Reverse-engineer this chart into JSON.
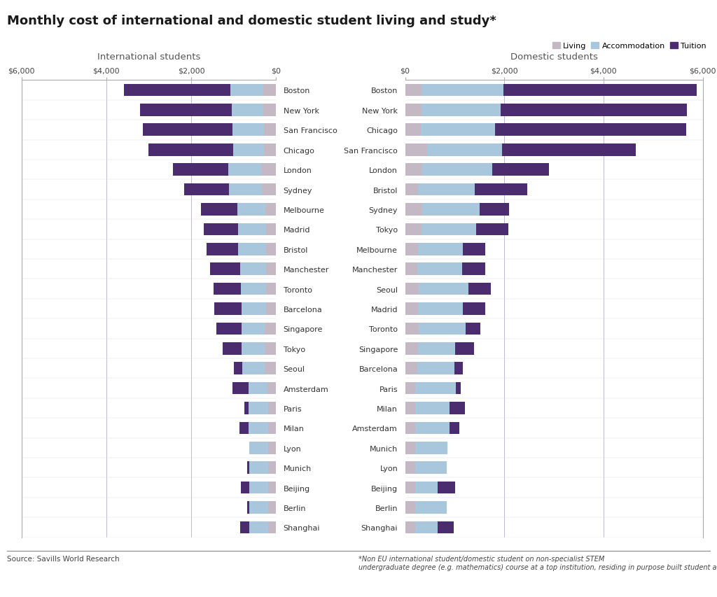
{
  "title": "Monthly cost of international and domestic student living and study*",
  "legend_labels": [
    "Living",
    "Accommodation",
    "Tuition"
  ],
  "intl_subtitle": "International students",
  "dom_subtitle": "Domestic students",
  "source_text": "Source: Savills World Research",
  "footnote": "*Non EU international student/domestic student on non-specialist STEM\nundergraduate degree (e.g. mathematics) course at a top institution, residing in purpose built student accommodation.",
  "cities_intl": [
    "Boston",
    "New York",
    "San Francisco",
    "Chicago",
    "London",
    "Sydney",
    "Melbourne",
    "Madrid",
    "Bristol",
    "Manchester",
    "Toronto",
    "Barcelona",
    "Singapore",
    "Tokyo",
    "Seoul",
    "Amsterdam",
    "Paris",
    "Milan",
    "Lyon",
    "Munich",
    "Beijing",
    "Berlin",
    "Shanghai"
  ],
  "cities_dom": [
    "Boston",
    "New York",
    "Chicago",
    "San Francisco",
    "London",
    "Bristol",
    "Sydney",
    "Tokyo",
    "Melbourne",
    "Manchester",
    "Seoul",
    "Madrid",
    "Toronto",
    "Singapore",
    "Barcelona",
    "Paris",
    "Milan",
    "Amsterdam",
    "Munich",
    "Lyon",
    "Beijing",
    "Berlin",
    "Shanghai"
  ],
  "intl_living": [
    300,
    300,
    280,
    290,
    350,
    340,
    250,
    240,
    240,
    230,
    240,
    230,
    260,
    260,
    260,
    200,
    190,
    190,
    190,
    190,
    190,
    190,
    190
  ],
  "intl_accommodation": [
    780,
    750,
    740,
    720,
    780,
    770,
    670,
    650,
    650,
    620,
    590,
    590,
    550,
    550,
    540,
    450,
    450,
    450,
    440,
    440,
    440,
    440,
    440
  ],
  "intl_tuition": [
    2500,
    2150,
    2120,
    2000,
    1300,
    1050,
    850,
    820,
    750,
    700,
    640,
    640,
    600,
    450,
    200,
    380,
    100,
    220,
    0,
    55,
    200,
    55,
    210
  ],
  "dom_living": [
    330,
    330,
    320,
    450,
    350,
    260,
    350,
    330,
    260,
    250,
    280,
    260,
    270,
    260,
    250,
    200,
    200,
    200,
    200,
    200,
    200,
    200,
    200
  ],
  "dom_accommodation": [
    1650,
    1600,
    1500,
    1500,
    1400,
    1150,
    1150,
    1100,
    900,
    900,
    1000,
    900,
    950,
    750,
    750,
    820,
    700,
    700,
    650,
    640,
    450,
    640,
    460
  ],
  "dom_tuition": [
    3900,
    3750,
    3850,
    2700,
    1150,
    1050,
    600,
    650,
    450,
    460,
    450,
    450,
    300,
    380,
    160,
    100,
    310,
    200,
    0,
    0,
    360,
    0,
    320
  ],
  "xmax": 6000,
  "living_color": "#c5b8c5",
  "accommodation_color": "#a8c6dc",
  "tuition_color": "#4b2d6f",
  "bg_color": "#ffffff",
  "bar_height": 0.62,
  "dashed_line_color": "#aaaacc",
  "spine_color": "#aaaaaa",
  "tick_color": "#444444",
  "label_color": "#333333",
  "subtitle_color": "#555555"
}
